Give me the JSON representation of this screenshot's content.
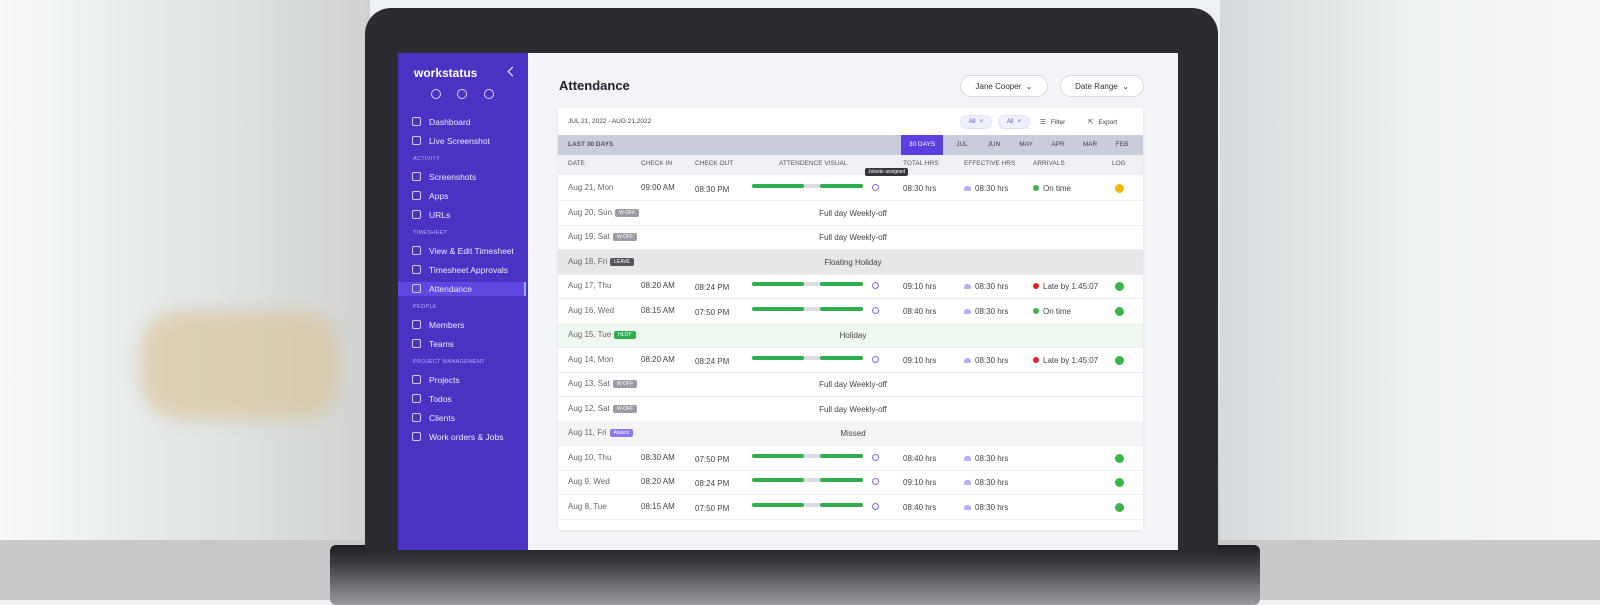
{
  "sidebar": {
    "brand": "workstatus",
    "items": [
      {
        "label": "Dashboard"
      },
      {
        "label": "Live Screenshot"
      }
    ],
    "sections": [
      {
        "heading": "ACTIVITY",
        "items": [
          {
            "label": "Screenshots"
          },
          {
            "label": "Apps"
          },
          {
            "label": "URLs"
          }
        ]
      },
      {
        "heading": "TIMESHEET",
        "items": [
          {
            "label": "View & Edit Timesheet"
          },
          {
            "label": "Timesheet Approvals"
          },
          {
            "label": "Attendance",
            "active": true
          }
        ]
      },
      {
        "heading": "PEOPLE",
        "items": [
          {
            "label": "Members"
          },
          {
            "label": "Teams"
          }
        ]
      },
      {
        "heading": "PROJECT MANAGEMENT",
        "items": [
          {
            "label": "Projects"
          },
          {
            "label": "Todos"
          },
          {
            "label": "Clients"
          },
          {
            "label": "Work orders & Jobs"
          }
        ]
      }
    ]
  },
  "header": {
    "title": "Attendance",
    "user": "Jane Cooper",
    "date_range": "Date Range"
  },
  "toolbar": {
    "range": "JUL 21, 2022 - AUG 21,2022",
    "filters": [
      "All",
      "All"
    ],
    "filter": "Filter",
    "export": "Export"
  },
  "period": {
    "label": "LAST 30 DAYS",
    "tabs": [
      "30 DAYS",
      "JUL",
      "JUN",
      "MAY",
      "APR",
      "MAR",
      "FEB"
    ]
  },
  "table": {
    "columns": [
      "DATE",
      "CHECK IN",
      "CHECK OUT",
      "ATTENDENCE VISUAL",
      "TOTAL HRS",
      "EFFECTIVE HRS",
      "ARRIVALS",
      "LOG"
    ],
    "tooltip": "Jobsite assigned",
    "rows": [
      {
        "date": "Aug 21, Mon",
        "check_in": "09:00 AM",
        "check_out": "08:30 PM",
        "total": "08:30 hrs",
        "effective": "08:30 hrs",
        "arrival": "On time",
        "dot_color": "#3bb54a",
        "log_color": "#f5b800"
      },
      {
        "date": "Aug 20, Sun",
        "badge": "W-OFF",
        "badge_color": "#9b9ca6",
        "note": "Full day Weekly-off"
      },
      {
        "date": "Aug 19, Sat",
        "badge": "W-OFF",
        "badge_color": "#9b9ca6",
        "note": "Full day Weekly-off"
      },
      {
        "date": "Aug 18, Fri",
        "badge": "LEAVE",
        "badge_color": "#55565c",
        "note": "Floating Holiday",
        "row_color": "#e7e7e9"
      },
      {
        "date": "Aug 17, Thu",
        "check_in": "08:20 AM",
        "check_out": "08:24 PM",
        "total": "09:10 hrs",
        "effective": "08:30 hrs",
        "arrival": "Late by 1:45:07",
        "dot_color": "#e02424",
        "log_color": "#3bb54a"
      },
      {
        "date": "Aug 16, Wed",
        "check_in": "08:15 AM",
        "check_out": "07:50 PM",
        "total": "08:40 hrs",
        "effective": "08:30 hrs",
        "arrival": "On time",
        "dot_color": "#3bb54a",
        "log_color": "#3bb54a"
      },
      {
        "date": "Aug 15, Tue",
        "badge": "HLDY",
        "badge_color": "#2fae4e",
        "note": "Holiday",
        "row_color": "#eef8f0"
      },
      {
        "date": "Aug 14, Mon",
        "check_in": "08:20 AM",
        "check_out": "08:24 PM",
        "total": "09:10 hrs",
        "effective": "08:30 hrs",
        "arrival": "Late by 1:45:07",
        "dot_color": "#e02424",
        "log_color": "#3bb54a"
      },
      {
        "date": "Aug 13, Sat",
        "badge": "W-OFF",
        "badge_color": "#9b9ca6",
        "note": "Full day Weekly-off"
      },
      {
        "date": "Aug 12, Sat",
        "badge": "W-OFF",
        "badge_color": "#9b9ca6",
        "note": "Full day Weekly-off"
      },
      {
        "date": "Aug 11, Fri",
        "badge": "Absent",
        "badge_color": "#8b78f0",
        "note": "Missed",
        "row_color": "#f4f4f6"
      },
      {
        "date": "Aug 10, Thu",
        "check_in": "08:30 AM",
        "check_out": "07:50 PM",
        "total": "08:40 hrs",
        "effective": "08:30 hrs",
        "log_color": "#3bb54a"
      },
      {
        "date": "Aug 9, Wed",
        "check_in": "08:20 AM",
        "check_out": "08:24 PM",
        "total": "09:10 hrs",
        "effective": "08:30 hrs",
        "log_color": "#3bb54a"
      },
      {
        "date": "Aug 8, Tue",
        "check_in": "08:15 AM",
        "check_out": "07:50 PM",
        "total": "08:40 hrs",
        "effective": "08:30 hrs",
        "log_color": "#3bb54a"
      }
    ]
  }
}
